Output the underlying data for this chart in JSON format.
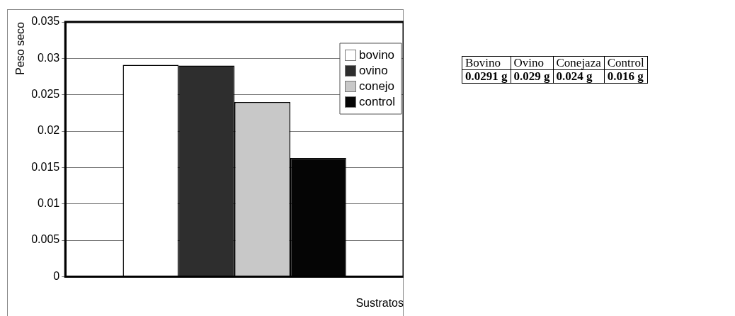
{
  "chart_data": [
    {
      "type": "bar",
      "xlabel": "Sustratos",
      "ylabel": "Peso seco",
      "categories": [
        null
      ],
      "series": [
        {
          "name": "bovino",
          "color": "#ffffff",
          "values": [
            0.0291
          ]
        },
        {
          "name": "ovino",
          "color": "#2e2e2e",
          "values": [
            0.029
          ]
        },
        {
          "name": "conejo",
          "color": "#c8c8c8",
          "values": [
            0.024
          ]
        },
        {
          "name": "control",
          "color": "#050505",
          "values": [
            0.0163
          ]
        }
      ],
      "ylim": [
        0,
        0.035
      ],
      "yticks": [
        0,
        0.005,
        0.01,
        0.015,
        0.02,
        0.025,
        0.03,
        0.035
      ],
      "grid": "y",
      "legend": "top right"
    },
    {
      "type": "other",
      "categories": [
        "Bovino",
        "Ovino",
        "Conejaza",
        "Control"
      ],
      "annotations": [
        "0.0291 g",
        "0.029 g",
        "0.024 g",
        "0.016 g"
      ]
    }
  ]
}
